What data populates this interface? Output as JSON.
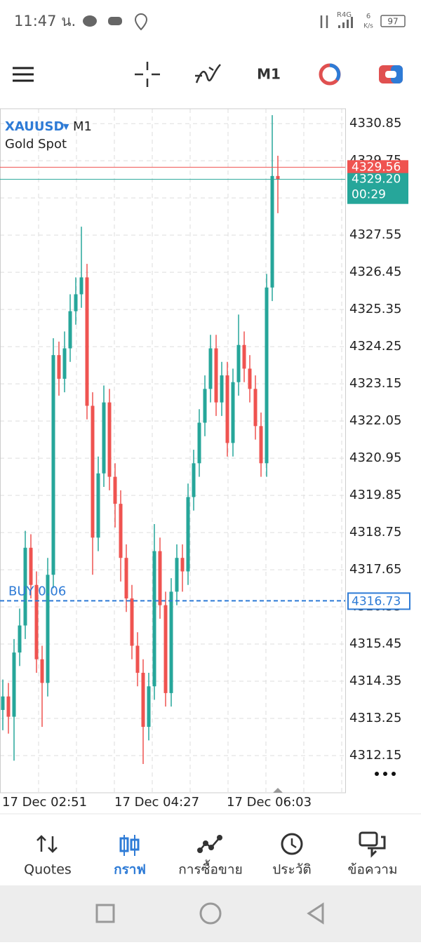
{
  "status_bar": {
    "time": "11:47 น.",
    "network": "R4G",
    "speed": "6",
    "speed_unit": "K/s",
    "battery": "97"
  },
  "toolbar": {
    "timeframe": "M1"
  },
  "chart_data": {
    "type": "candlestick",
    "title": "XAUUSD",
    "timeframe": "M1",
    "subtitle": "Gold Spot",
    "up_color": "#26a69a",
    "down_color": "#ef5350",
    "candles": [
      [
        4313.5,
        4314.4,
        4312.9,
        4313.9
      ],
      [
        4313.9,
        4314.3,
        4312.8,
        4313.3
      ],
      [
        4313.3,
        4315.6,
        4312.0,
        4315.2
      ],
      [
        4315.2,
        4316.5,
        4314.8,
        4316.0
      ],
      [
        4316.0,
        4318.8,
        4315.6,
        4318.3
      ],
      [
        4318.3,
        4318.7,
        4316.8,
        4317.2
      ],
      [
        4317.2,
        4317.6,
        4314.6,
        4315.0
      ],
      [
        4315.0,
        4315.4,
        4313.0,
        4314.3
      ],
      [
        4314.3,
        4318.0,
        4313.9,
        4317.5
      ],
      [
        4317.5,
        4324.5,
        4317.1,
        4324.0
      ],
      [
        4324.0,
        4324.4,
        4322.8,
        4323.3
      ],
      [
        4323.3,
        4324.7,
        4322.9,
        4324.2
      ],
      [
        4324.2,
        4325.8,
        4323.8,
        4325.3
      ],
      [
        4325.3,
        4326.3,
        4324.9,
        4325.8
      ],
      [
        4325.8,
        4327.8,
        4325.4,
        4326.3
      ],
      [
        4326.3,
        4326.7,
        4322.1,
        4322.5
      ],
      [
        4322.5,
        4322.9,
        4317.5,
        4318.6
      ],
      [
        4318.6,
        4321.0,
        4318.2,
        4320.5
      ],
      [
        4320.5,
        4323.1,
        4320.1,
        4322.6
      ],
      [
        4322.6,
        4323.0,
        4320.0,
        4320.4
      ],
      [
        4320.4,
        4320.8,
        4318.9,
        4319.6
      ],
      [
        4319.6,
        4320.0,
        4317.3,
        4318.0
      ],
      [
        4318.0,
        4318.4,
        4316.4,
        4316.8
      ],
      [
        4316.8,
        4317.2,
        4315.0,
        4315.4
      ],
      [
        4315.4,
        4315.8,
        4314.2,
        4314.6
      ],
      [
        4314.6,
        4315.0,
        4311.9,
        4313.0
      ],
      [
        4313.0,
        4314.6,
        4312.6,
        4314.2
      ],
      [
        4314.2,
        4319.0,
        4313.8,
        4318.2
      ],
      [
        4318.2,
        4318.6,
        4316.2,
        4316.6
      ],
      [
        4316.6,
        4317.0,
        4313.6,
        4314.0
      ],
      [
        4314.0,
        4317.4,
        4313.6,
        4317.0
      ],
      [
        4317.0,
        4318.4,
        4316.6,
        4318.0
      ],
      [
        4318.0,
        4318.4,
        4317.0,
        4317.6
      ],
      [
        4317.6,
        4320.2,
        4317.2,
        4319.8
      ],
      [
        4319.8,
        4321.2,
        4319.4,
        4320.8
      ],
      [
        4320.8,
        4322.4,
        4320.4,
        4322.0
      ],
      [
        4322.0,
        4323.4,
        4321.6,
        4323.0
      ],
      [
        4323.0,
        4324.6,
        4322.6,
        4324.2
      ],
      [
        4324.2,
        4324.6,
        4322.2,
        4322.6
      ],
      [
        4322.6,
        4323.8,
        4322.2,
        4323.4
      ],
      [
        4323.4,
        4323.8,
        4321.0,
        4321.4
      ],
      [
        4321.4,
        4323.6,
        4321.0,
        4323.2
      ],
      [
        4323.2,
        4325.2,
        4322.8,
        4324.3
      ],
      [
        4324.3,
        4324.7,
        4323.2,
        4323.6
      ],
      [
        4323.6,
        4324.0,
        4322.6,
        4323.0
      ],
      [
        4323.0,
        4323.4,
        4321.5,
        4321.9
      ],
      [
        4321.9,
        4322.3,
        4320.4,
        4320.8
      ],
      [
        4320.8,
        4326.4,
        4320.4,
        4326.0
      ],
      [
        4326.0,
        4331.1,
        4325.6,
        4329.3
      ],
      [
        4329.3,
        4329.9,
        4328.2,
        4329.2
      ]
    ],
    "ylim": [
      4311.05,
      4331.29
    ],
    "yticks": [
      4312.15,
      4313.25,
      4314.35,
      4315.45,
      4316.55,
      4317.65,
      4318.75,
      4319.85,
      4320.95,
      4322.05,
      4323.15,
      4324.25,
      4325.35,
      4326.45,
      4327.55,
      4328.65,
      4329.75,
      4330.85
    ],
    "x_labels": [
      "17 Dec 02:51",
      "17 Dec 04:27",
      "17 Dec 06:03"
    ],
    "ask": 4329.56,
    "bid": {
      "value": 4329.2,
      "label": "4329.20"
    },
    "countdown": "00:29",
    "order_line": {
      "label": "BUY 0.06",
      "value": 4316.73
    }
  },
  "nav": {
    "items": [
      "Quotes",
      "กราฟ",
      "การซื้อขาย",
      "ประวัติ",
      "ข้อความ"
    ]
  }
}
